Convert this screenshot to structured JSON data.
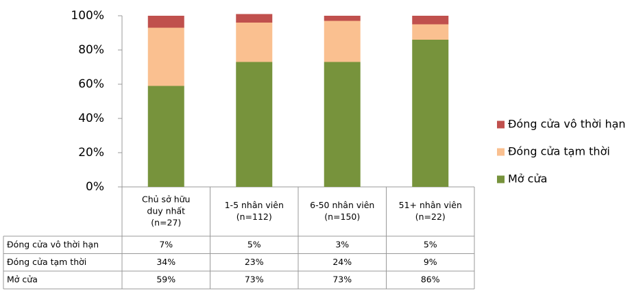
{
  "chart_data": {
    "type": "stacked_bar",
    "categories": [
      [
        "Chủ sở hữu",
        "duy nhất",
        "(n=27)"
      ],
      [
        "1-5 nhân viên",
        "(n=112)"
      ],
      [
        "6-50 nhân viên",
        "(n=150)"
      ],
      [
        "51+ nhân viên",
        "(n=22)"
      ]
    ],
    "series": [
      {
        "name": "Mở cửa",
        "color": "#77933c",
        "values": [
          59,
          73,
          73,
          86
        ],
        "value_labels": [
          "59%",
          "73%",
          "73%",
          "86%"
        ]
      },
      {
        "name": "Đóng cửa tạm thời",
        "color": "#fac090",
        "values": [
          34,
          23,
          24,
          9
        ],
        "value_labels": [
          "34%",
          "23%",
          "24%",
          "9%"
        ]
      },
      {
        "name": "Đóng cửa vô thời hạn",
        "color": "#c0504d",
        "values": [
          7,
          5,
          3,
          5
        ],
        "value_labels": [
          "7%",
          "5%",
          "3%",
          "5%"
        ]
      }
    ],
    "ylim": [
      0,
      100
    ],
    "yticks": [
      {
        "value": 0,
        "label": "0%"
      },
      {
        "value": 20,
        "label": "20%"
      },
      {
        "value": 40,
        "label": "40%"
      },
      {
        "value": 60,
        "label": "60%"
      },
      {
        "value": 80,
        "label": "80%"
      },
      {
        "value": 100,
        "label": "100%"
      }
    ],
    "legend": "right"
  }
}
